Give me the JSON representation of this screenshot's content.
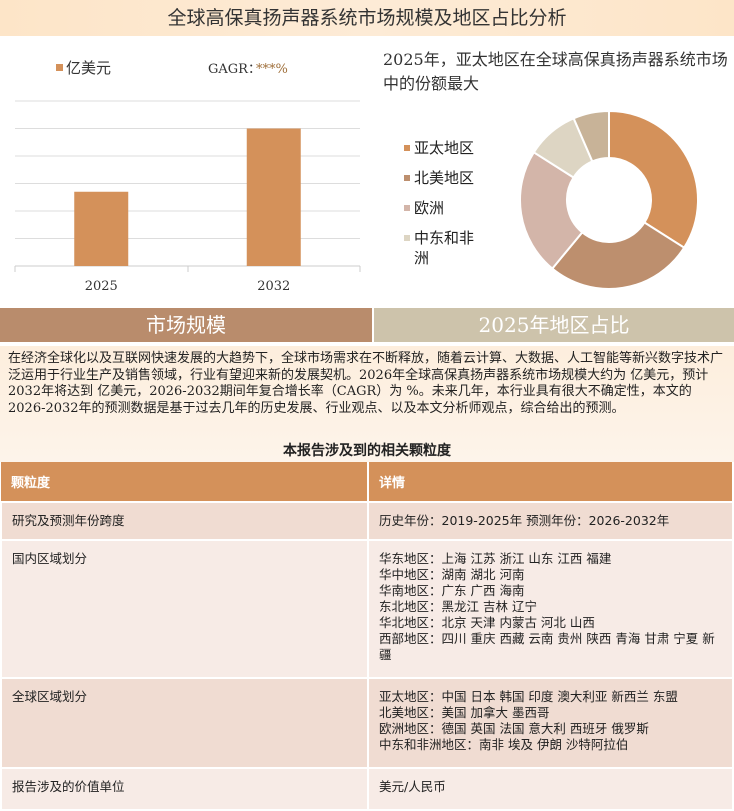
{
  "title": "全球高保真扬声器系统市场规模及地区占比分析",
  "chart_data": [
    {
      "type": "bar",
      "categories": [
        "2025",
        "2032"
      ],
      "values": [
        2.7,
        5.0
      ],
      "legend": "亿美元",
      "annotation": "GAGR：",
      "annotation_value": "***%",
      "ylim": [
        0,
        6
      ],
      "grid": true,
      "color": "#d4915a"
    },
    {
      "type": "pie",
      "title": "2025年，亚太地区在全球高保真扬声器系统市场中的份额最大",
      "labels": [
        "亚太地区",
        "北美地区",
        "欧洲",
        "中东和非洲",
        ""
      ],
      "values": [
        34,
        27,
        23,
        9.5,
        6.5
      ],
      "colors": [
        "#d4915a",
        "#bd8f6e",
        "#d3b5a9",
        "#ddd5c3",
        "#c8b398"
      ],
      "donut": true,
      "legend": "left"
    }
  ],
  "tabs": {
    "left": "市场规模",
    "right": "2025年地区占比"
  },
  "intro": "在经济全球化以及互联网快速发展的大趋势下，全球市场需求在不断释放，随着云计算、大数据、人工智能等新兴数字技术广泛运用于行业生产及销售领域，行业有望迎来新的发展契机。2026年全球高保真扬声器系统市场规模大约为 亿美元，预计2032年将达到 亿美元，2026-2032期间年复合增长率（CAGR）为 %。未来几年，本行业具有很大不确定性，本文的2026-2032年的预测数据是基于过去几年的历史发展、行业观点、以及本文分析师观点，综合给出的预测。",
  "table": {
    "title": "本报告涉及到的相关颗粒度",
    "headers": [
      "颗粒度",
      "详情"
    ],
    "rows": [
      [
        "研究及预测年份跨度",
        "历史年份：2019-2025年 预测年份：2026-2032年"
      ],
      [
        "国内区域划分",
        "华东地区：上海  江苏  浙江  山东  江西  福建\n华中地区：湖南  湖北  河南\n华南地区：广东  广西  海南\n东北地区：黑龙江  吉林  辽宁\n华北地区：北京  天津  内蒙古  河北  山西\n西部地区：四川  重庆  西藏  云南  贵州  陕西  青海  甘肃  宁夏  新疆"
      ],
      [
        "全球区域划分",
        "亚太地区：中国  日本  韩国  印度  澳大利亚  新西兰  东盟\n北美地区：美国  加拿大  墨西哥\n欧洲地区：德国  英国  法国  意大利  西班牙  俄罗斯\n中东和非洲地区：南非  埃及  伊朗  沙特阿拉伯"
      ],
      [
        "报告涉及的价值单位",
        "美元/人民币"
      ]
    ]
  }
}
